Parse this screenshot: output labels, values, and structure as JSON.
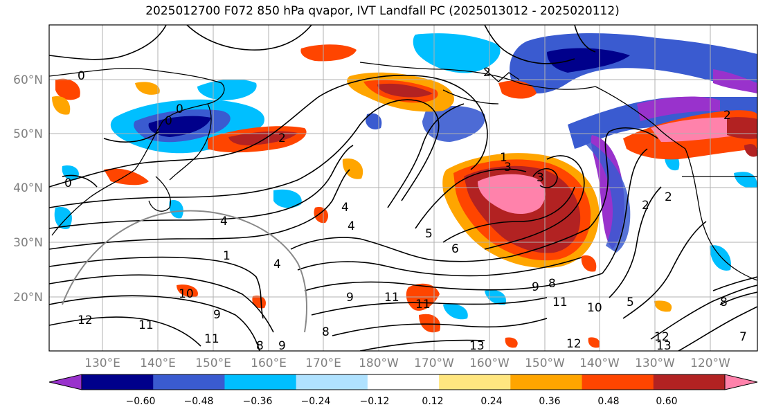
{
  "title": "2025012700 F072 850 hPa qvapor, IVT Landfall PC (2025013012 - 2025020112)",
  "lat_labels": [
    "60°N",
    "50°N",
    "40°N",
    "30°N",
    "20°N"
  ],
  "lon_labels": [
    "130°E",
    "140°E",
    "150°E",
    "160°E",
    "170°E",
    "180°W",
    "170°W",
    "160°W",
    "150°W",
    "140°W",
    "130°W",
    "120°W"
  ],
  "colorbar": {
    "colors": [
      "#9932cc",
      "#00008b",
      "#3a5bd0",
      "#00bfff",
      "#b0e2ff",
      "#ffffff",
      "#ffe680",
      "#ffa500",
      "#ff4500",
      "#b22222",
      "#ff82ab"
    ],
    "tick_labels": [
      "−0.60",
      "−0.48",
      "−0.36",
      "−0.24",
      "−0.12",
      "0.12",
      "0.24",
      "0.36",
      "0.48",
      "0.60"
    ]
  },
  "contour_labels": [
    "0",
    "0",
    "0",
    "0",
    "2",
    "1",
    "2",
    "3",
    "3",
    "2",
    "2",
    "2",
    "4",
    "4",
    "4",
    "5",
    "6",
    "1",
    "4",
    "10",
    "9",
    "11",
    "12",
    "11",
    "11",
    "8",
    "9",
    "9",
    "8",
    "11",
    "9",
    "8",
    "11",
    "10",
    "5",
    "13",
    "12",
    "12",
    "13",
    "8",
    "7"
  ]
}
